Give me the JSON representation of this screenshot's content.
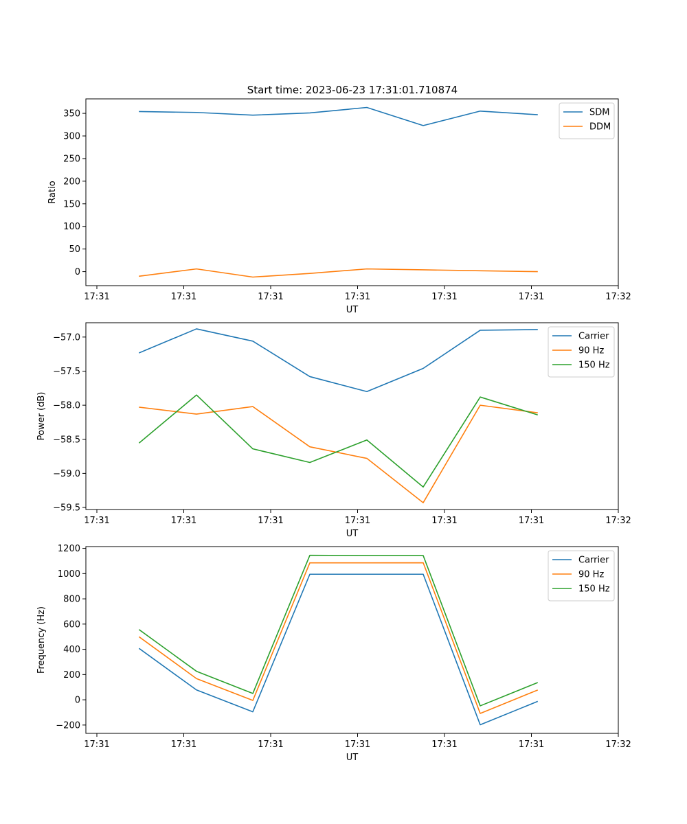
{
  "title": "Start time: 2023-06-23 17:31:01.710874",
  "chart_data": [
    {
      "type": "line",
      "xlabel": "UT",
      "ylabel": "Ratio",
      "x_tick_labels": [
        "17:31",
        "17:31",
        "17:31",
        "17:31",
        "17:31",
        "17:31",
        "17:32"
      ],
      "y_ticks": [
        0,
        50,
        100,
        150,
        200,
        250,
        300,
        350
      ],
      "ylim": [
        -31,
        382
      ],
      "legend": "top-right",
      "grid": false,
      "series": [
        {
          "name": "SDM",
          "color": "#1f77b4",
          "values": [
            354,
            352,
            346,
            351,
            363,
            323,
            355,
            347
          ]
        },
        {
          "name": "DDM",
          "color": "#ff7f0e",
          "values": [
            -10,
            6,
            -12,
            -4,
            6,
            4,
            2,
            0
          ]
        }
      ]
    },
    {
      "type": "line",
      "xlabel": "UT",
      "ylabel": "Power (dB)",
      "x_tick_labels": [
        "17:31",
        "17:31",
        "17:31",
        "17:31",
        "17:31",
        "17:31",
        "17:32"
      ],
      "y_ticks": [
        -59.5,
        -59.0,
        -58.5,
        -58.0,
        -57.5,
        -57.0
      ],
      "y_tick_labels": [
        "−59.5",
        "−59.0",
        "−58.5",
        "−58.0",
        "−57.5",
        "−57.0"
      ],
      "ylim": [
        -59.53,
        -56.79
      ],
      "legend": "top-right",
      "grid": false,
      "series": [
        {
          "name": "Carrier",
          "color": "#1f77b4",
          "values": [
            -57.23,
            -56.88,
            -57.06,
            -57.58,
            -57.8,
            -57.46,
            -56.9,
            -56.89
          ]
        },
        {
          "name": "90 Hz",
          "color": "#ff7f0e",
          "values": [
            -58.03,
            -58.13,
            -58.02,
            -58.61,
            -58.78,
            -59.43,
            -58.0,
            -58.11
          ]
        },
        {
          "name": "150 Hz",
          "color": "#2ca02c",
          "values": [
            -58.55,
            -57.85,
            -58.64,
            -58.84,
            -58.51,
            -59.2,
            -57.88,
            -58.14
          ]
        }
      ]
    },
    {
      "type": "line",
      "xlabel": "UT",
      "ylabel": "Frequency (Hz)",
      "x_tick_labels": [
        "17:31",
        "17:31",
        "17:31",
        "17:31",
        "17:31",
        "17:31",
        "17:32"
      ],
      "y_ticks": [
        -200,
        0,
        200,
        400,
        600,
        800,
        1000,
        1200
      ],
      "y_tick_labels": [
        "−200",
        "0",
        "200",
        "400",
        "600",
        "800",
        "1000",
        "1200"
      ],
      "ylim": [
        -266,
        1214
      ],
      "legend": "top-right",
      "grid": false,
      "series": [
        {
          "name": "Carrier",
          "color": "#1f77b4",
          "values": [
            405,
            78,
            -95,
            995,
            995,
            995,
            -198,
            -14
          ]
        },
        {
          "name": "90 Hz",
          "color": "#ff7f0e",
          "values": [
            497,
            168,
            -5,
            1085,
            1085,
            1086,
            -108,
            76
          ]
        },
        {
          "name": "150 Hz",
          "color": "#2ca02c",
          "values": [
            554,
            226,
            50,
            1145,
            1143,
            1143,
            -48,
            135
          ]
        }
      ]
    }
  ]
}
